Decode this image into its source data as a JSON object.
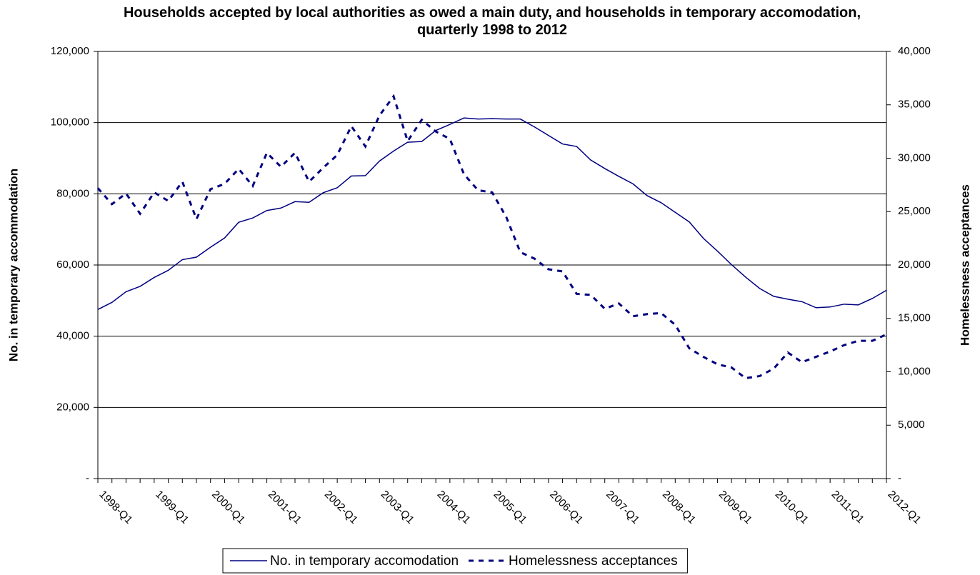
{
  "chart_data": {
    "type": "line",
    "title": "Households accepted by local authorities as owed a main duty, and households in temporary accomodation, quarterly 1998 to 2012",
    "y_label": "No. in temporary accommodation",
    "y2_label": "Homelessness acceptances",
    "categories": [
      "1998-Q1",
      null,
      null,
      null,
      "1999-Q1",
      null,
      null,
      null,
      "2000-Q1",
      null,
      null,
      null,
      "2001-Q1",
      null,
      null,
      null,
      "2002-Q1",
      null,
      null,
      null,
      "2003-Q1",
      null,
      null,
      null,
      "2004-Q1",
      null,
      null,
      null,
      "2005-Q1",
      null,
      null,
      null,
      "2006-Q1",
      null,
      null,
      null,
      "2007-Q1",
      null,
      null,
      null,
      "2008-Q1",
      null,
      null,
      null,
      "2009-Q1",
      null,
      null,
      null,
      "2010-Q1",
      null,
      null,
      null,
      "2011-Q1",
      null,
      null,
      null,
      "2012-Q1"
    ],
    "series": [
      {
        "name": "No. in temporary accomodation",
        "color": "#000080",
        "style": "solid",
        "values": [
          47500,
          49500,
          52500,
          54000,
          56500,
          58500,
          61500,
          62200,
          65000,
          67600,
          72000,
          73200,
          75300,
          76000,
          77800,
          77600,
          80300,
          81700,
          85000,
          85100,
          89200,
          92000,
          94500,
          94700,
          97800,
          99500,
          101300,
          101000,
          101100,
          101000,
          101000,
          98800,
          96400,
          94000,
          93300,
          89500,
          87100,
          84900,
          82800,
          79500,
          77500,
          74800,
          72100,
          67500,
          63900,
          60100,
          56600,
          53400,
          51200,
          50400,
          49700,
          48000,
          48200,
          49000,
          48800,
          50600,
          52900
        ]
      },
      {
        "name": "Homelessness acceptances",
        "color": "#000080",
        "style": "dashed",
        "axis": "y2",
        "values": [
          27200,
          25700,
          26700,
          24800,
          26800,
          26000,
          27800,
          24300,
          27100,
          27600,
          29000,
          27400,
          30500,
          29200,
          30500,
          27800,
          29100,
          30300,
          33000,
          31100,
          34000,
          35800,
          31600,
          33600,
          32500,
          31800,
          28500,
          27000,
          26800,
          24500,
          21200,
          20600,
          19600,
          19400,
          17300,
          17200,
          15900,
          16400,
          15200,
          15400,
          15500,
          14400,
          12200,
          11400,
          10700,
          10400,
          9400,
          9600,
          10300,
          11800,
          10900,
          11400,
          11900,
          12500,
          12900,
          12900,
          13500
        ]
      }
    ],
    "ylim": [
      0,
      120000
    ],
    "yticks": [
      {
        "value": 0,
        "label": "-"
      },
      {
        "value": 20000,
        "label": "20,000"
      },
      {
        "value": 40000,
        "label": "40,000"
      },
      {
        "value": 60000,
        "label": "60,000"
      },
      {
        "value": 80000,
        "label": "80,000"
      },
      {
        "value": 100000,
        "label": "100,000"
      },
      {
        "value": 120000,
        "label": "120,000"
      }
    ],
    "y2lim": [
      0,
      40000
    ],
    "y2ticks": [
      {
        "value": 0,
        "label": "-"
      },
      {
        "value": 5000,
        "label": "5,000"
      },
      {
        "value": 10000,
        "label": "10,000"
      },
      {
        "value": 15000,
        "label": "15,000"
      },
      {
        "value": 20000,
        "label": "20,000"
      },
      {
        "value": 25000,
        "label": "25,000"
      },
      {
        "value": 30000,
        "label": "30,000"
      },
      {
        "value": 35000,
        "label": "35,000"
      },
      {
        "value": 40000,
        "label": "40,000"
      }
    ],
    "grid": true,
    "legend": "bottom"
  }
}
